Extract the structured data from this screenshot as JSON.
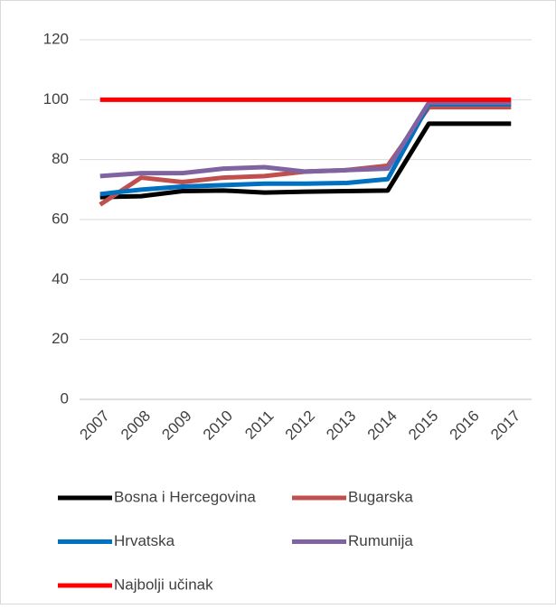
{
  "chart_data": {
    "type": "line",
    "categories": [
      "2007",
      "2008",
      "2009",
      "2010",
      "2011",
      "2012",
      "2013",
      "2014",
      "2015",
      "2016",
      "2017"
    ],
    "series": [
      {
        "name": "Bosna i Hercegovina",
        "color": "#000000",
        "values": [
          67.5,
          67.8,
          69.5,
          69.7,
          69,
          69.3,
          69.5,
          69.7,
          92,
          92,
          92
        ]
      },
      {
        "name": "Bugarska",
        "color": "#c0504d",
        "values": [
          65,
          74,
          72.5,
          74,
          74.5,
          76,
          76.5,
          78,
          97.5,
          97.5,
          97.5
        ]
      },
      {
        "name": "Hrvatska",
        "color": "#0070c0",
        "values": [
          68.5,
          70,
          71,
          71.5,
          72,
          72,
          72.2,
          73.5,
          98.5,
          98.5,
          98.5
        ]
      },
      {
        "name": "Rumunija",
        "color": "#8064a2",
        "values": [
          74.5,
          75.5,
          75.5,
          77,
          77.5,
          76,
          76.5,
          77,
          99,
          99,
          99
        ]
      },
      {
        "name": "Najbolji učinak",
        "color": "#ff0000",
        "values": [
          100,
          100,
          100,
          100,
          100,
          100,
          100,
          100,
          100,
          100,
          100
        ]
      }
    ],
    "ylim": [
      0,
      120
    ],
    "yticks": [
      0,
      20,
      40,
      60,
      80,
      100,
      120
    ],
    "grid": true
  }
}
